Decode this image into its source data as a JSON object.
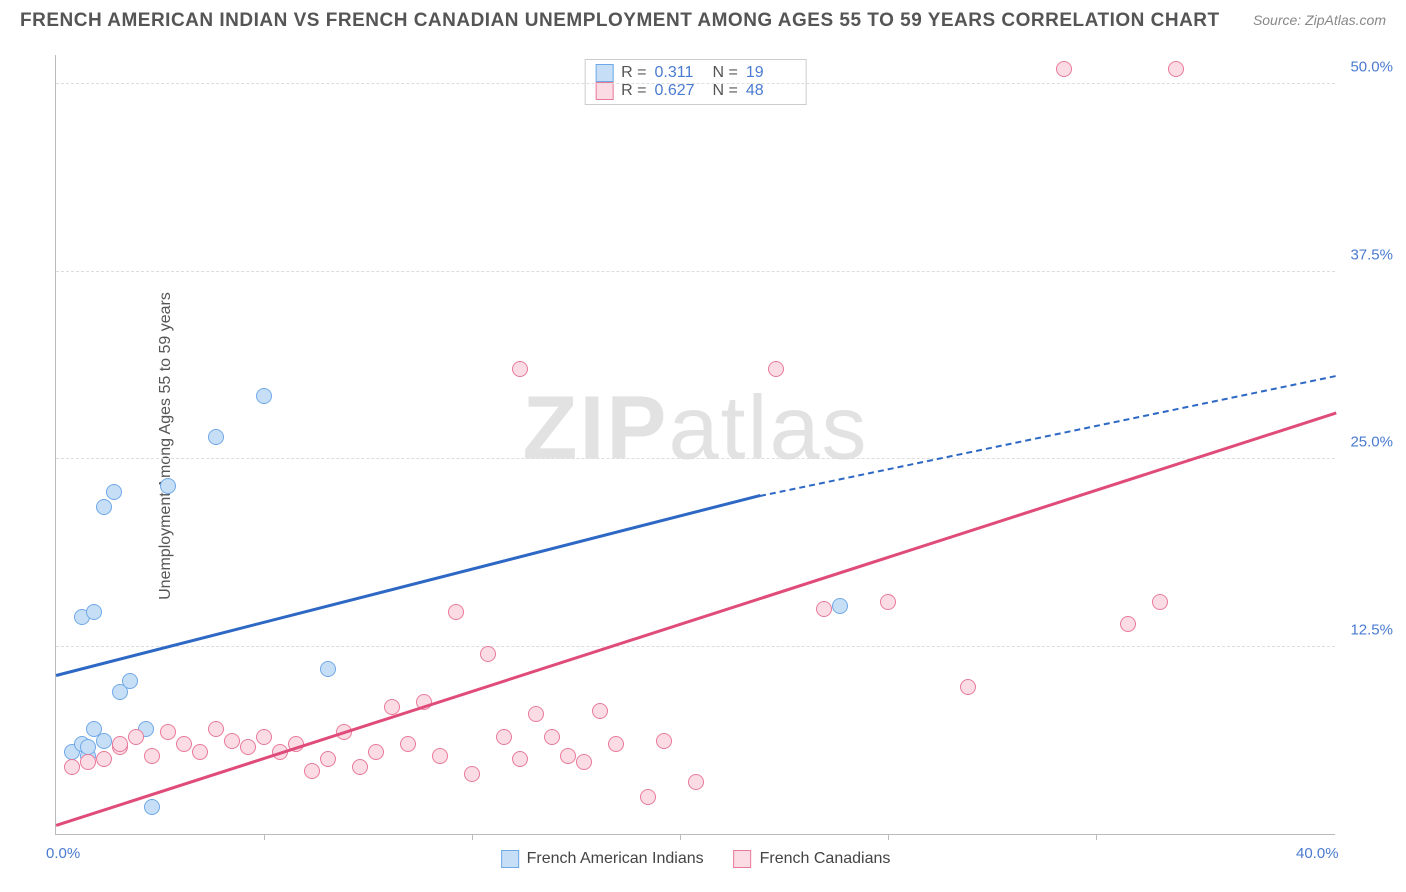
{
  "title": "FRENCH AMERICAN INDIAN VS FRENCH CANADIAN UNEMPLOYMENT AMONG AGES 55 TO 59 YEARS CORRELATION CHART",
  "source": "Source: ZipAtlas.com",
  "ylabel": "Unemployment Among Ages 55 to 59 years",
  "watermark_zip": "ZIP",
  "watermark_atlas": "atlas",
  "chart": {
    "type": "scatter",
    "xlim": [
      0,
      40
    ],
    "ylim": [
      0,
      52
    ],
    "xticks": [
      0,
      40
    ],
    "xtick_labels": [
      "0.0%",
      "40.0%"
    ],
    "xtick_minor": [
      6.5,
      13,
      19.5,
      26,
      32.5
    ],
    "yticks": [
      12.5,
      25,
      37.5,
      50
    ],
    "ytick_labels": [
      "12.5%",
      "25.0%",
      "37.5%",
      "50.0%"
    ],
    "grid_color": "#e5e5e5",
    "background_color": "#ffffff",
    "point_radius": 8,
    "series": [
      {
        "name": "French American Indians",
        "color_fill": "#c7dff6",
        "color_stroke": "#6fa8e8",
        "trend_color": "#2d68c4",
        "R": "0.311",
        "N": "19",
        "points": [
          [
            0.5,
            5.5
          ],
          [
            0.8,
            6.0
          ],
          [
            1.0,
            5.2
          ],
          [
            1.2,
            7.0
          ],
          [
            1.5,
            6.2
          ],
          [
            2.0,
            9.5
          ],
          [
            2.3,
            10.2
          ],
          [
            0.8,
            14.5
          ],
          [
            1.2,
            14.8
          ],
          [
            1.8,
            22.8
          ],
          [
            1.5,
            21.8
          ],
          [
            3.5,
            23.2
          ],
          [
            5.0,
            26.5
          ],
          [
            6.5,
            29.2
          ],
          [
            3.0,
            1.8
          ],
          [
            8.5,
            11.0
          ],
          [
            2.8,
            7.0
          ],
          [
            1.0,
            5.8
          ],
          [
            24.5,
            15.2
          ]
        ],
        "trend": {
          "x1": 0,
          "y1": 10.5,
          "x2": 22,
          "y2": 22.5,
          "x2_dash": 40,
          "y2_dash": 30.5
        }
      },
      {
        "name": "French Canadians",
        "color_fill": "#fbdce4",
        "color_stroke": "#e97a9a",
        "trend_color": "#e04c7a",
        "R": "0.627",
        "N": "48",
        "points": [
          [
            0.5,
            4.5
          ],
          [
            1.0,
            4.8
          ],
          [
            1.5,
            5.0
          ],
          [
            2.0,
            5.8
          ],
          [
            2.5,
            6.5
          ],
          [
            3.0,
            5.2
          ],
          [
            3.5,
            6.8
          ],
          [
            4.0,
            6.0
          ],
          [
            4.5,
            5.5
          ],
          [
            5.0,
            7.0
          ],
          [
            5.5,
            6.2
          ],
          [
            6.0,
            5.8
          ],
          [
            6.5,
            6.5
          ],
          [
            7.0,
            5.5
          ],
          [
            7.5,
            6.0
          ],
          [
            8.0,
            4.2
          ],
          [
            8.5,
            5.0
          ],
          [
            9.0,
            6.8
          ],
          [
            9.5,
            4.5
          ],
          [
            10.5,
            8.5
          ],
          [
            11.0,
            6.0
          ],
          [
            11.5,
            8.8
          ],
          [
            12.0,
            5.2
          ],
          [
            12.5,
            14.8
          ],
          [
            13.0,
            4.0
          ],
          [
            13.5,
            12.0
          ],
          [
            14.0,
            6.5
          ],
          [
            14.5,
            5.0
          ],
          [
            15.0,
            8.0
          ],
          [
            15.5,
            6.5
          ],
          [
            16.0,
            5.2
          ],
          [
            16.5,
            4.8
          ],
          [
            17.0,
            8.2
          ],
          [
            17.5,
            6.0
          ],
          [
            18.5,
            2.5
          ],
          [
            19.0,
            6.2
          ],
          [
            20.0,
            3.5
          ],
          [
            14.5,
            31.0
          ],
          [
            22.5,
            31.0
          ],
          [
            24.0,
            15.0
          ],
          [
            26.0,
            15.5
          ],
          [
            28.5,
            9.8
          ],
          [
            33.5,
            14.0
          ],
          [
            34.5,
            15.5
          ],
          [
            31.5,
            51.0
          ],
          [
            35.0,
            51.0
          ],
          [
            2.0,
            6.0
          ],
          [
            10.0,
            5.5
          ]
        ],
        "trend": {
          "x1": 0,
          "y1": 0.5,
          "x2": 40,
          "y2": 28.0
        }
      }
    ]
  },
  "legend_top": {
    "r_label": "R  =",
    "n_label": "N  ="
  }
}
